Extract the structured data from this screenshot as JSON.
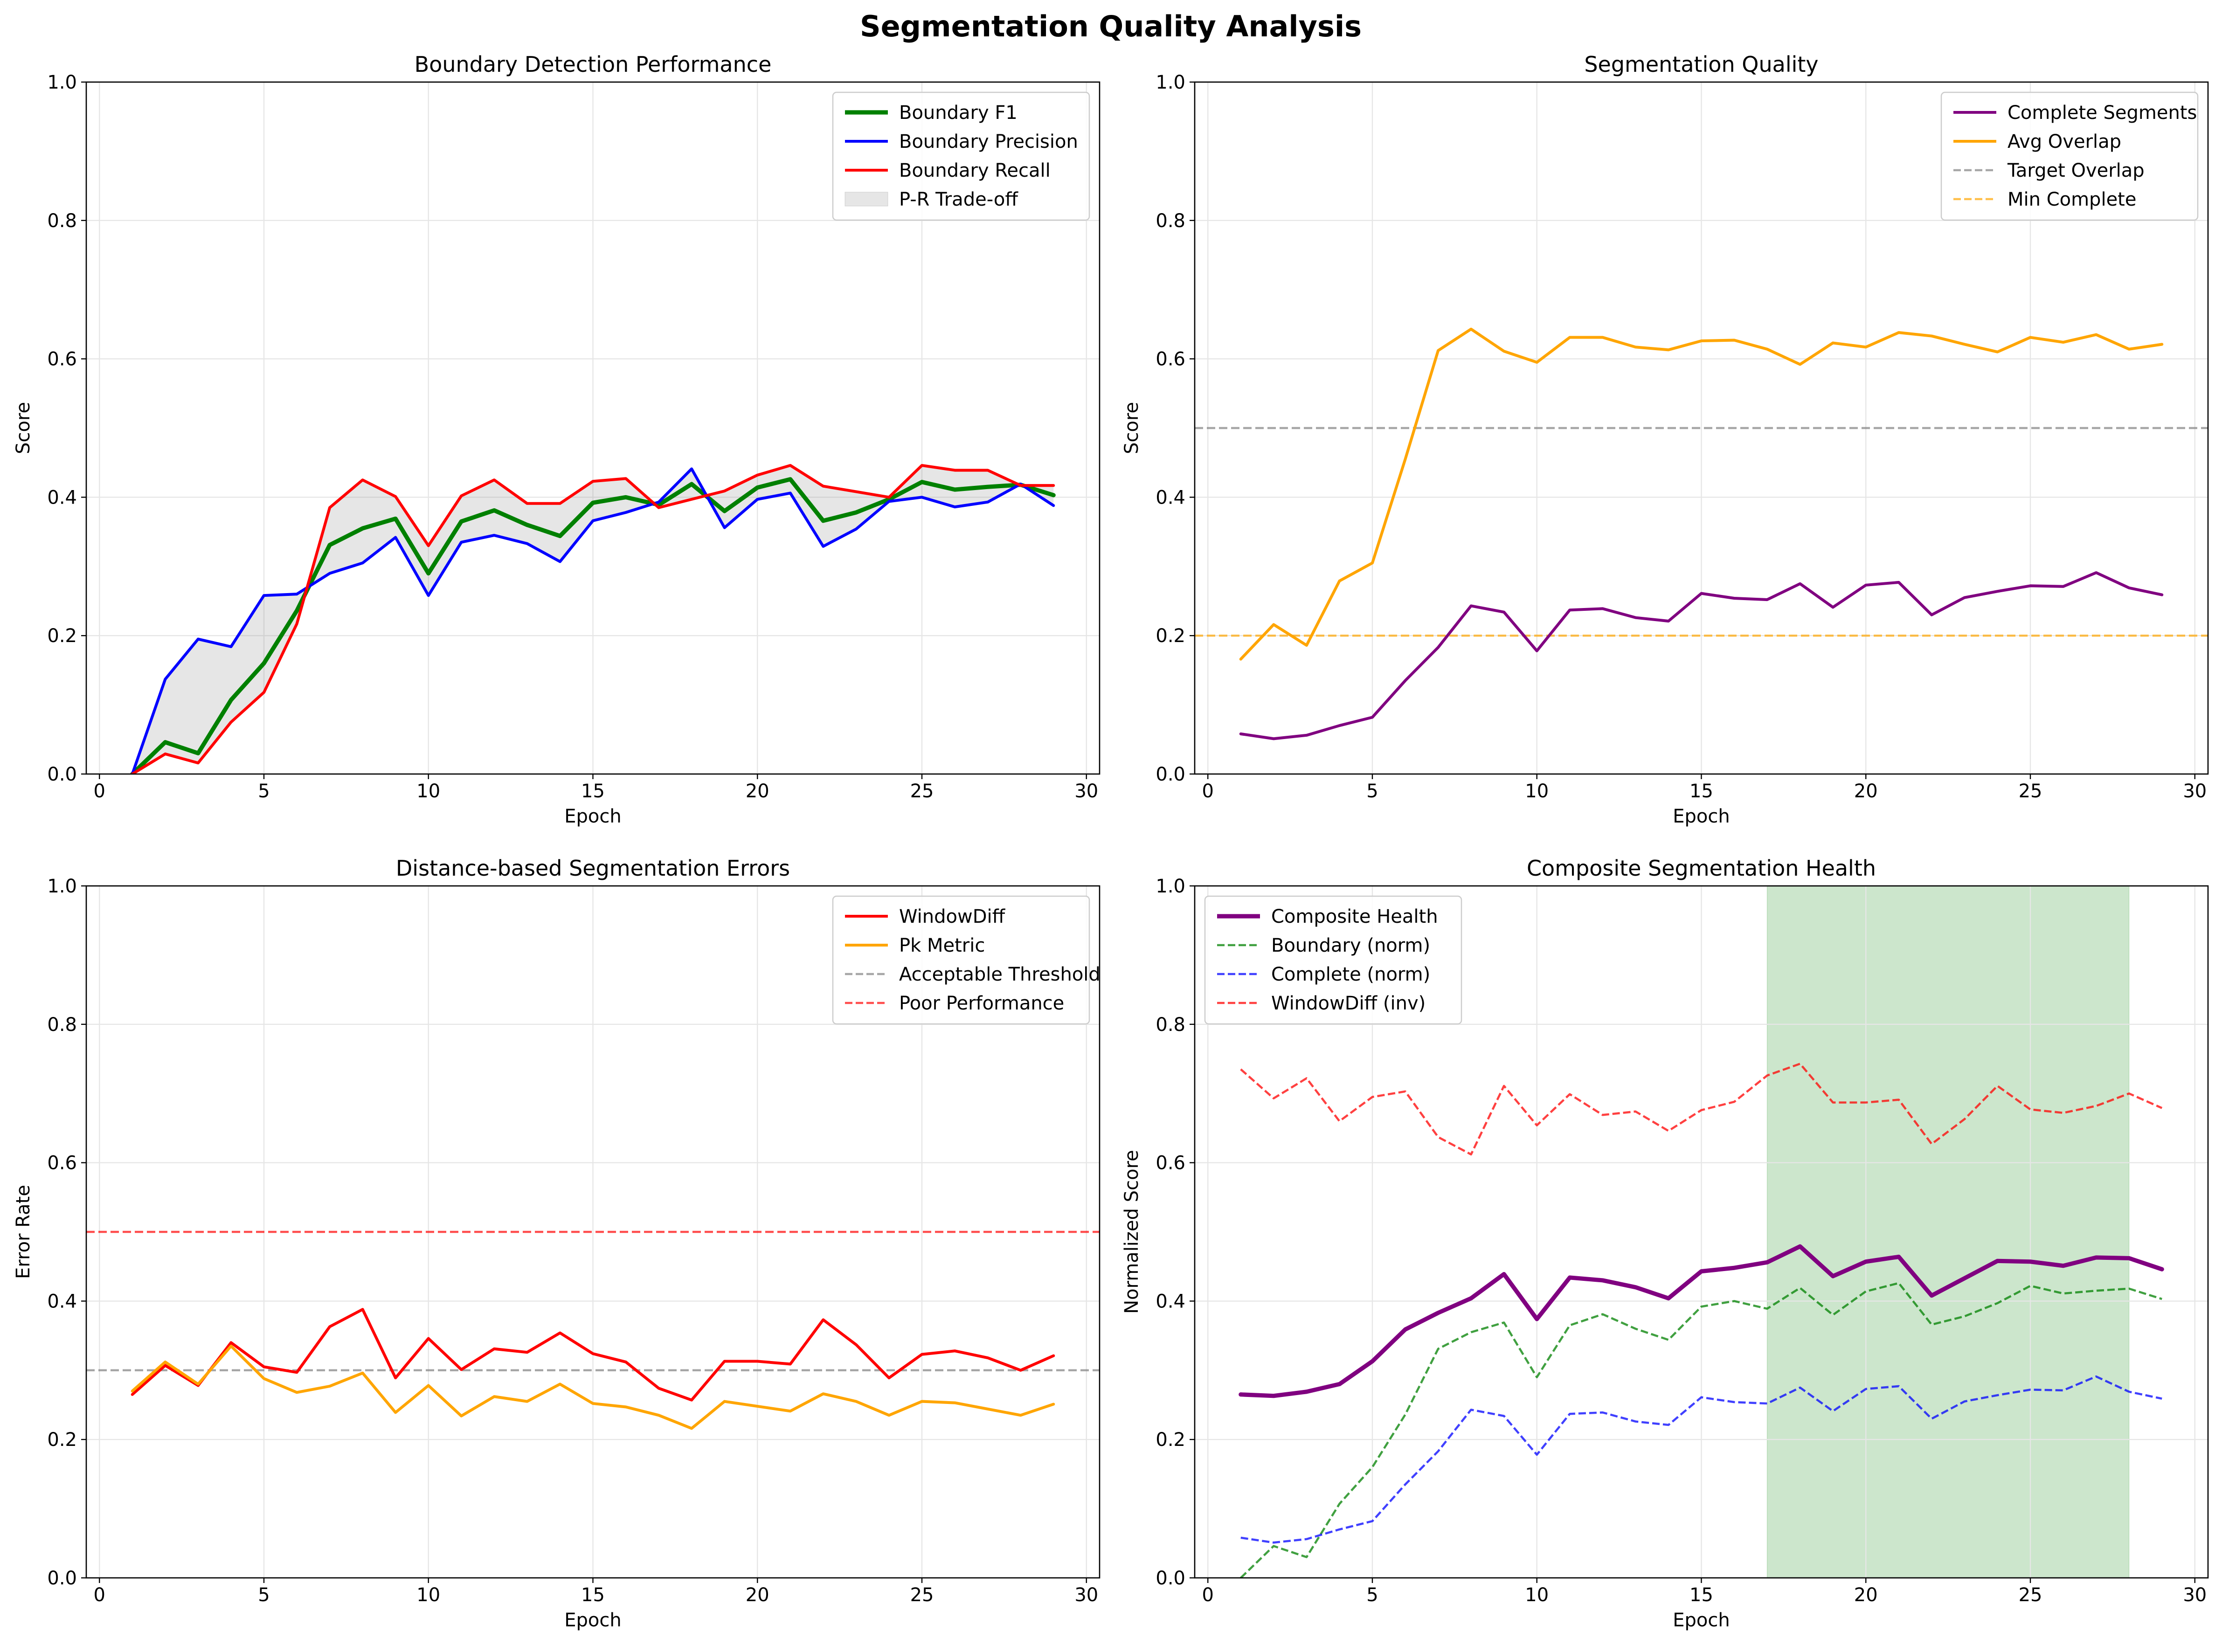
{
  "suptitle": "Segmentation Quality Analysis",
  "epochs": [
    1,
    2,
    3,
    4,
    5,
    6,
    7,
    8,
    9,
    10,
    11,
    12,
    13,
    14,
    15,
    16,
    17,
    18,
    19,
    20,
    21,
    22,
    23,
    24,
    25,
    26,
    27,
    28,
    29
  ],
  "chart_data": [
    {
      "type": "line",
      "title": "Boundary Detection Performance",
      "xlabel": "Epoch",
      "ylabel": "Score",
      "xlim": [
        -0.4,
        30.4
      ],
      "ylim": [
        0,
        1.0
      ],
      "xticks": [
        0,
        5,
        10,
        15,
        20,
        25,
        30
      ],
      "yticks": [
        0.0,
        0.2,
        0.4,
        0.6,
        0.8,
        1.0
      ],
      "grid": true,
      "legend": "top-right",
      "series": [
        {
          "name": "Boundary F1",
          "color": "#008000",
          "width": 3,
          "dash": "solid",
          "values": [
            0.0,
            0.046,
            0.03,
            0.107,
            0.16,
            0.236,
            0.331,
            0.355,
            0.369,
            0.29,
            0.365,
            0.381,
            0.36,
            0.344,
            0.392,
            0.4,
            0.389,
            0.419,
            0.38,
            0.414,
            0.426,
            0.366,
            0.378,
            0.397,
            0.422,
            0.411,
            0.415,
            0.418,
            0.403
          ]
        },
        {
          "name": "Boundary Precision",
          "color": "#0000ff",
          "width": 2,
          "dash": "solid",
          "values": [
            0.0,
            0.137,
            0.195,
            0.184,
            0.258,
            0.26,
            0.29,
            0.305,
            0.342,
            0.258,
            0.335,
            0.345,
            0.333,
            0.307,
            0.366,
            0.378,
            0.393,
            0.441,
            0.356,
            0.397,
            0.406,
            0.329,
            0.354,
            0.394,
            0.4,
            0.386,
            0.393,
            0.419,
            0.388
          ]
        },
        {
          "name": "Boundary Recall",
          "color": "#ff0000",
          "width": 2,
          "dash": "solid",
          "values": [
            0.0,
            0.029,
            0.016,
            0.075,
            0.118,
            0.217,
            0.385,
            0.425,
            0.401,
            0.33,
            0.402,
            0.425,
            0.391,
            0.391,
            0.423,
            0.427,
            0.385,
            0.397,
            0.409,
            0.432,
            0.446,
            0.416,
            0.408,
            0.4,
            0.446,
            0.439,
            0.439,
            0.417,
            0.417
          ]
        }
      ],
      "fill_between": {
        "name": "P-R Trade-off",
        "color": "#808080",
        "between": [
          1,
          2
        ]
      },
      "hlines": []
    },
    {
      "type": "line",
      "title": "Segmentation Quality",
      "xlabel": "Epoch",
      "ylabel": "Score",
      "xlim": [
        -0.4,
        30.4
      ],
      "ylim": [
        0,
        1.0
      ],
      "xticks": [
        0,
        5,
        10,
        15,
        20,
        25,
        30
      ],
      "yticks": [
        0.0,
        0.2,
        0.4,
        0.6,
        0.8,
        1.0
      ],
      "grid": true,
      "legend": "top-right",
      "series": [
        {
          "name": "Complete Segments",
          "color": "#800080",
          "width": 2,
          "dash": "solid",
          "values": [
            0.058,
            0.051,
            0.056,
            0.07,
            0.082,
            0.135,
            0.183,
            0.243,
            0.234,
            0.178,
            0.237,
            0.239,
            0.226,
            0.221,
            0.261,
            0.254,
            0.252,
            0.275,
            0.241,
            0.273,
            0.277,
            0.23,
            0.255,
            0.264,
            0.272,
            0.271,
            0.291,
            0.269,
            0.259
          ]
        },
        {
          "name": "Avg Overlap",
          "color": "#ffa500",
          "width": 2,
          "dash": "solid",
          "values": [
            0.166,
            0.216,
            0.186,
            0.279,
            0.305,
            0.455,
            0.612,
            0.643,
            0.611,
            0.595,
            0.631,
            0.631,
            0.617,
            0.613,
            0.626,
            0.627,
            0.614,
            0.592,
            0.623,
            0.617,
            0.638,
            0.633,
            0.621,
            0.61,
            0.631,
            0.624,
            0.635,
            0.614,
            0.621
          ]
        }
      ],
      "hlines": [
        {
          "name": "Target Overlap",
          "y": 0.5,
          "color": "#808080",
          "dash": "dashed"
        },
        {
          "name": "Min Complete",
          "y": 0.2,
          "color": "#ffa500",
          "dash": "dashed"
        }
      ]
    },
    {
      "type": "line",
      "title": "Distance-based Segmentation Errors",
      "xlabel": "Epoch",
      "ylabel": "Error Rate",
      "xlim": [
        -0.4,
        30.4
      ],
      "ylim": [
        0,
        1.0
      ],
      "xticks": [
        0,
        5,
        10,
        15,
        20,
        25,
        30
      ],
      "yticks": [
        0.0,
        0.2,
        0.4,
        0.6,
        0.8,
        1.0
      ],
      "grid": true,
      "legend": "top-right",
      "series": [
        {
          "name": "WindowDiff",
          "color": "#ff0000",
          "width": 2,
          "dash": "solid",
          "values": [
            0.265,
            0.307,
            0.278,
            0.34,
            0.305,
            0.297,
            0.363,
            0.388,
            0.289,
            0.346,
            0.301,
            0.331,
            0.326,
            0.354,
            0.324,
            0.312,
            0.274,
            0.257,
            0.313,
            0.313,
            0.309,
            0.373,
            0.337,
            0.289,
            0.323,
            0.328,
            0.318,
            0.3,
            0.321
          ]
        },
        {
          "name": "Pk Metric",
          "color": "#ffa500",
          "width": 2,
          "dash": "solid",
          "values": [
            0.27,
            0.312,
            0.28,
            0.335,
            0.288,
            0.268,
            0.277,
            0.296,
            0.239,
            0.278,
            0.234,
            0.262,
            0.255,
            0.28,
            0.252,
            0.247,
            0.235,
            0.216,
            0.255,
            0.248,
            0.241,
            0.266,
            0.255,
            0.235,
            0.255,
            0.253,
            0.244,
            0.235,
            0.251
          ]
        }
      ],
      "hlines": [
        {
          "name": "Acceptable Threshold",
          "y": 0.3,
          "color": "#808080",
          "dash": "dashed"
        },
        {
          "name": "Poor Performance",
          "y": 0.5,
          "color": "#ff0000",
          "dash": "dashed"
        }
      ]
    },
    {
      "type": "line",
      "title": "Composite Segmentation Health",
      "xlabel": "Epoch",
      "ylabel": "Normalized Score",
      "xlim": [
        -0.4,
        30.4
      ],
      "ylim": [
        0,
        1.0
      ],
      "xticks": [
        0,
        5,
        10,
        15,
        20,
        25,
        30
      ],
      "yticks": [
        0.0,
        0.2,
        0.4,
        0.6,
        0.8,
        1.0
      ],
      "grid": true,
      "legend": "top-left",
      "series": [
        {
          "name": "Composite Health",
          "color": "#800080",
          "width": 3,
          "dash": "solid",
          "values": [
            0.265,
            0.263,
            0.269,
            0.28,
            0.313,
            0.359,
            0.383,
            0.404,
            0.439,
            0.374,
            0.434,
            0.43,
            0.42,
            0.404,
            0.443,
            0.448,
            0.456,
            0.479,
            0.436,
            0.457,
            0.464,
            0.408,
            0.433,
            0.458,
            0.457,
            0.451,
            0.463,
            0.462,
            0.446
          ]
        },
        {
          "name": "Boundary (norm)",
          "color": "#008000",
          "width": 1.5,
          "dash": "dashed",
          "values": [
            0.0,
            0.046,
            0.03,
            0.107,
            0.16,
            0.236,
            0.331,
            0.355,
            0.369,
            0.29,
            0.365,
            0.381,
            0.36,
            0.344,
            0.392,
            0.4,
            0.389,
            0.419,
            0.38,
            0.414,
            0.426,
            0.366,
            0.378,
            0.397,
            0.422,
            0.411,
            0.415,
            0.418,
            0.403
          ]
        },
        {
          "name": "Complete (norm)",
          "color": "#0000ff",
          "width": 1.5,
          "dash": "dashed",
          "values": [
            0.058,
            0.051,
            0.056,
            0.07,
            0.082,
            0.135,
            0.183,
            0.243,
            0.234,
            0.178,
            0.237,
            0.239,
            0.226,
            0.221,
            0.261,
            0.254,
            0.252,
            0.275,
            0.241,
            0.273,
            0.277,
            0.23,
            0.255,
            0.264,
            0.272,
            0.271,
            0.291,
            0.269,
            0.259
          ]
        },
        {
          "name": "WindowDiff (inv)",
          "color": "#ff0000",
          "width": 1.5,
          "dash": "dashed",
          "values": [
            0.735,
            0.693,
            0.722,
            0.66,
            0.695,
            0.703,
            0.637,
            0.612,
            0.711,
            0.654,
            0.699,
            0.669,
            0.674,
            0.646,
            0.676,
            0.688,
            0.726,
            0.743,
            0.687,
            0.687,
            0.691,
            0.627,
            0.663,
            0.711,
            0.677,
            0.672,
            0.682,
            0.7,
            0.679
          ]
        }
      ],
      "shaded_region": {
        "x_start": 17,
        "x_end": 28,
        "color": "#008000"
      },
      "hlines": []
    }
  ]
}
